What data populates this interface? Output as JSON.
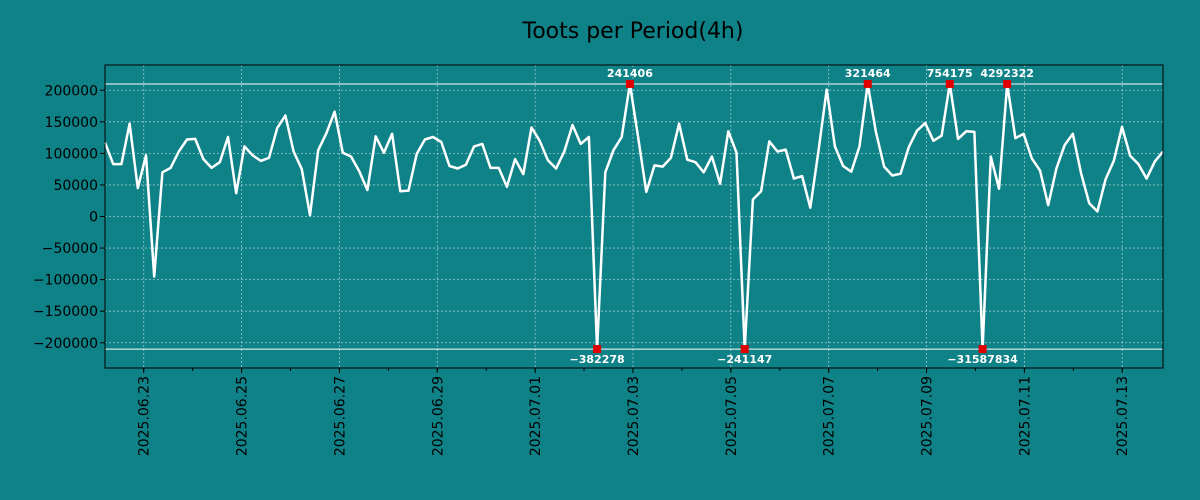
{
  "chart_data": {
    "type": "line",
    "title": "Toots per Period(4h)",
    "xlabel": "",
    "ylabel": "",
    "x_start": "2025.06.22 05:00",
    "x_end": "2025.07.13 20:00",
    "ylim": [
      -240000,
      240000
    ],
    "clip_limits": [
      -210000,
      210000
    ],
    "yticks": [
      {
        "value": 200000,
        "label": "200000"
      },
      {
        "value": 150000,
        "label": "150000"
      },
      {
        "value": 100000,
        "label": "100000"
      },
      {
        "value": 50000,
        "label": "50000"
      },
      {
        "value": 0,
        "label": "0"
      },
      {
        "value": -50000,
        "label": "−50000"
      },
      {
        "value": -100000,
        "label": "−100000"
      },
      {
        "value": -150000,
        "label": "−150000"
      },
      {
        "value": -200000,
        "label": "−200000"
      }
    ],
    "xticks": [
      "2025.06.23",
      "2025.06.25",
      "2025.06.27",
      "2025.06.29",
      "2025.07.01",
      "2025.07.03",
      "2025.07.05",
      "2025.07.07",
      "2025.07.09",
      "2025.07.11",
      "2025.07.13"
    ],
    "grid": true,
    "colors": {
      "line": "#ffffff",
      "marker": "#e00000",
      "grid": "#cfe8e6",
      "background": "#0f8287"
    },
    "series": [
      {
        "values": [
          117000,
          83000,
          83000,
          147000,
          45000,
          97000,
          -95000,
          70000,
          77000,
          103000,
          122000,
          123000,
          91000,
          77000,
          86000,
          126000,
          37000,
          111000,
          97000,
          88000,
          93000,
          140000,
          160000,
          103000,
          75000,
          2000,
          105000,
          132000,
          166000,
          101000,
          95000,
          72000,
          42000,
          127000,
          101000,
          131000,
          40000,
          41000,
          99000,
          122000,
          126000,
          118000,
          80000,
          76000,
          82000,
          111000,
          115000,
          77000,
          77000,
          47000,
          91000,
          67000,
          141000,
          120000,
          89000,
          76000,
          103000,
          145000,
          115000,
          126000,
          -210000,
          70000,
          105000,
          126000,
          210000,
          126000,
          39000,
          81000,
          79000,
          93000,
          147000,
          90000,
          86000,
          70000,
          95000,
          52000,
          135000,
          101000,
          -210000,
          27000,
          40000,
          119000,
          103000,
          106000,
          60000,
          64000,
          14000,
          104000,
          201000,
          111000,
          80000,
          71000,
          111000,
          210000,
          134000,
          79000,
          65000,
          68000,
          110000,
          136000,
          148000,
          120000,
          128000,
          210000,
          123000,
          135000,
          134000,
          -210000,
          95000,
          44000,
          210000,
          124000,
          131000,
          92000,
          73000,
          18000,
          76000,
          113000,
          131000,
          69000,
          21000,
          8000,
          59000,
          88000,
          142000,
          96000,
          83000,
          60000,
          87000,
          103000
        ]
      }
    ],
    "annotations": [
      {
        "label": "241406",
        "index": 64,
        "position": "top"
      },
      {
        "label": "321464",
        "index": 93,
        "position": "top"
      },
      {
        "label": "754175",
        "index": 103,
        "position": "top"
      },
      {
        "label": "4292322",
        "index": 110,
        "position": "top"
      },
      {
        "label": "−382278",
        "index": 60,
        "position": "bottom"
      },
      {
        "label": "−241147",
        "index": 78,
        "position": "bottom"
      },
      {
        "label": "−31587834",
        "index": 107,
        "position": "bottom"
      }
    ]
  }
}
